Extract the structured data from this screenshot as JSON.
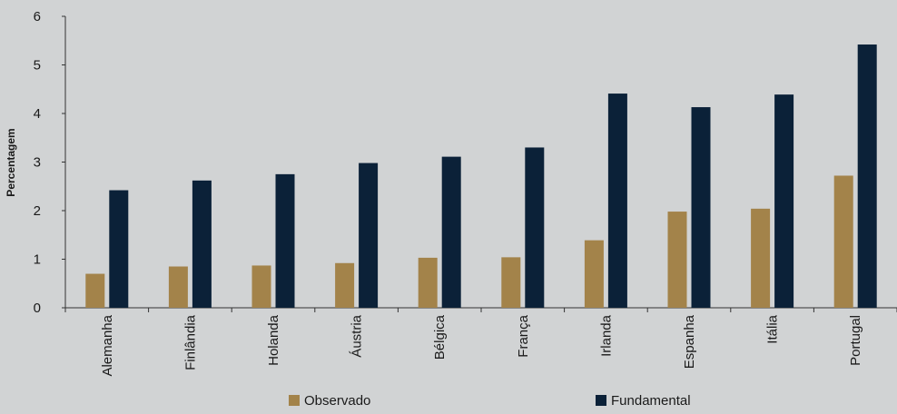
{
  "chart_data": {
    "type": "bar",
    "ylabel": "Percentagem",
    "ylim": [
      0,
      6
    ],
    "yticks": [
      0,
      1,
      2,
      3,
      4,
      5,
      6
    ],
    "categories": [
      "Alemanha",
      "Finlândia",
      "Holanda",
      "Áustria",
      "Bélgica",
      "França",
      "Irlanda",
      "Espanha",
      "Itália",
      "Portugal"
    ],
    "series": [
      {
        "name": "Observado",
        "color": "#a3834a",
        "values": [
          0.7,
          0.85,
          0.87,
          0.92,
          1.03,
          1.04,
          1.39,
          1.98,
          2.04,
          2.72
        ]
      },
      {
        "name": "Fundamental",
        "color": "#0b2138",
        "values": [
          2.42,
          2.62,
          2.75,
          2.98,
          3.11,
          3.3,
          4.41,
          4.13,
          4.39,
          5.42
        ]
      }
    ],
    "grid": false,
    "legend_position": "bottom"
  }
}
